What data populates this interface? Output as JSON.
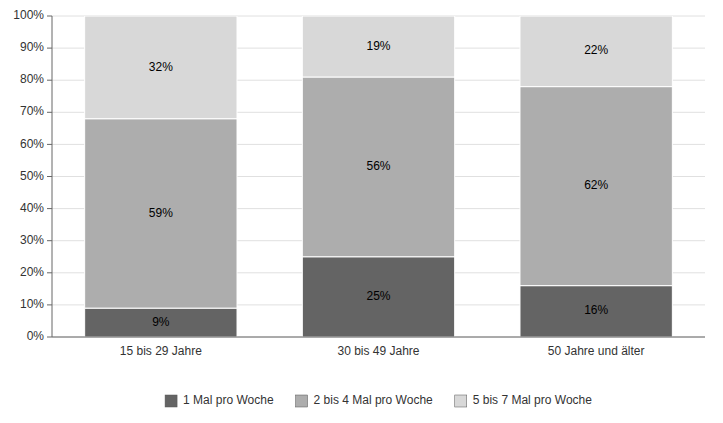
{
  "chart_data": {
    "type": "bar",
    "stacked": true,
    "categories": [
      "15 bis 29 Jahre",
      "30 bis 49 Jahre",
      "50 Jahre und älter"
    ],
    "series": [
      {
        "name": "1 Mal pro Woche",
        "color": "#646464",
        "values": [
          9,
          25,
          16
        ],
        "value_labels": [
          "9%",
          "25%",
          "16%"
        ]
      },
      {
        "name": "2 bis 4 Mal pro Woche",
        "color": "#ADADAD",
        "values": [
          59,
          56,
          62
        ],
        "value_labels": [
          "59%",
          "56%",
          "62%"
        ]
      },
      {
        "name": "5 bis 7 Mal pro Woche",
        "color": "#D8D8D8",
        "values": [
          32,
          19,
          22
        ],
        "value_labels": [
          "32%",
          "19%",
          "22%"
        ]
      }
    ],
    "ylim": [
      0,
      100
    ],
    "yticks": [
      {
        "value": 0,
        "label": "0%"
      },
      {
        "value": 10,
        "label": "10%"
      },
      {
        "value": 20,
        "label": "20%"
      },
      {
        "value": 30,
        "label": "30%"
      },
      {
        "value": 40,
        "label": "40%"
      },
      {
        "value": 50,
        "label": "50%"
      },
      {
        "value": 60,
        "label": "60%"
      },
      {
        "value": 70,
        "label": "70%"
      },
      {
        "value": 80,
        "label": "80%"
      },
      {
        "value": 90,
        "label": "90%"
      },
      {
        "value": 100,
        "label": "100%"
      }
    ],
    "grid": true,
    "data_labels": true,
    "legend": "bottom"
  }
}
